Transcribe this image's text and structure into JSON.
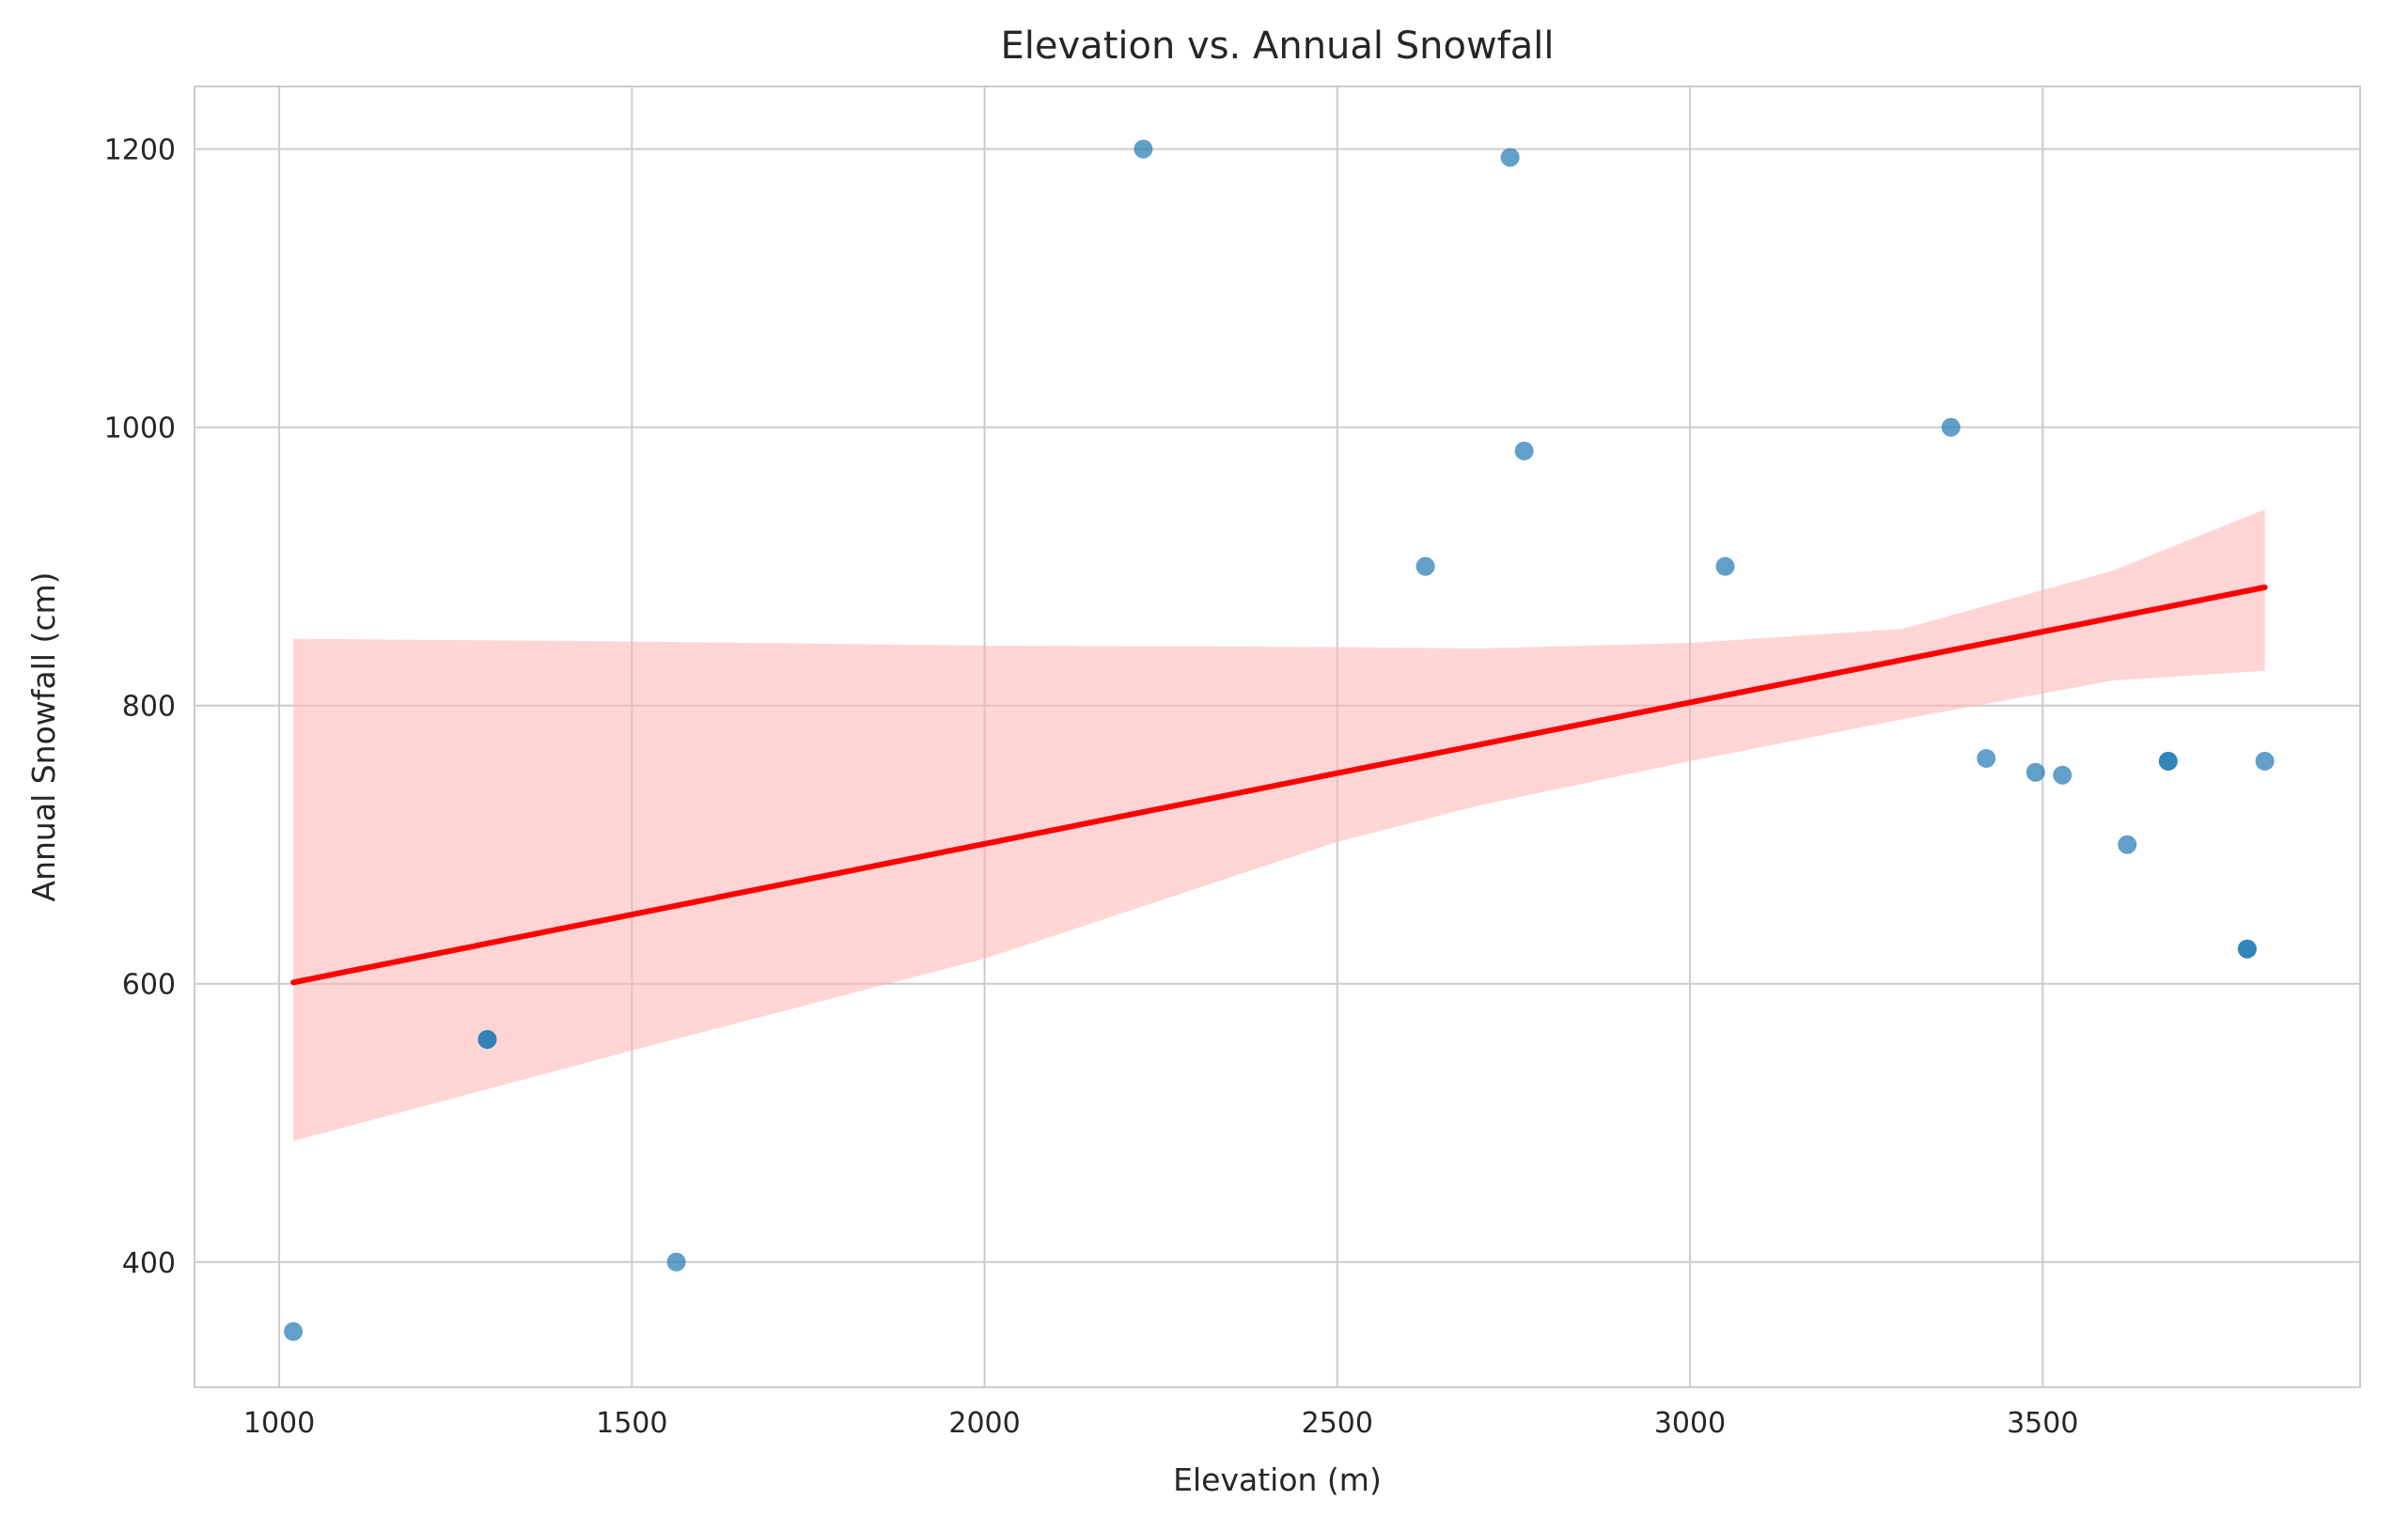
{
  "chart_data": {
    "type": "scatter",
    "title": "Elevation vs. Annual Snowfall",
    "xlabel": "Elevation (m)",
    "ylabel": "Annual Snowfall (cm)",
    "xlim": [
      880,
      3950
    ],
    "ylim": [
      310,
      1245
    ],
    "xticks": [
      1000,
      1500,
      2000,
      2500,
      3000,
      3500
    ],
    "yticks": [
      400,
      600,
      800,
      1000,
      1200
    ],
    "grid": true,
    "legend": "none",
    "colors": {
      "points": "#1f77b4",
      "regression_line": "#ff0000",
      "confidence_band": "#ffb3b3",
      "grid": "#cccccc",
      "frame": "#cccccc"
    },
    "series": [
      {
        "points": [
          {
            "x": 1020,
            "y": 350
          },
          {
            "x": 1295,
            "y": 560
          },
          {
            "x": 1295,
            "y": 560
          },
          {
            "x": 1563,
            "y": 400
          },
          {
            "x": 2225,
            "y": 1200
          },
          {
            "x": 2625,
            "y": 900
          },
          {
            "x": 2745,
            "y": 1194
          },
          {
            "x": 2765,
            "y": 983
          },
          {
            "x": 3050,
            "y": 900
          },
          {
            "x": 3370,
            "y": 1000
          },
          {
            "x": 3420,
            "y": 762
          },
          {
            "x": 3490,
            "y": 752
          },
          {
            "x": 3528,
            "y": 750
          },
          {
            "x": 3620,
            "y": 700
          },
          {
            "x": 3678,
            "y": 760
          },
          {
            "x": 3678,
            "y": 760
          },
          {
            "x": 3790,
            "y": 625
          },
          {
            "x": 3790,
            "y": 625
          },
          {
            "x": 3815,
            "y": 760
          }
        ]
      }
    ],
    "regression": {
      "x": [
        1020,
        3815
      ],
      "y": [
        601,
        885
      ],
      "ci_x": [
        1020,
        1500,
        2000,
        2500,
        2700,
        3000,
        3300,
        3600,
        3815
      ],
      "ci_upper": [
        848,
        846,
        843,
        842,
        841,
        845,
        855,
        897,
        941
      ],
      "ci_lower": [
        487,
        552,
        618,
        702,
        728,
        760,
        790,
        818,
        825
      ]
    }
  }
}
